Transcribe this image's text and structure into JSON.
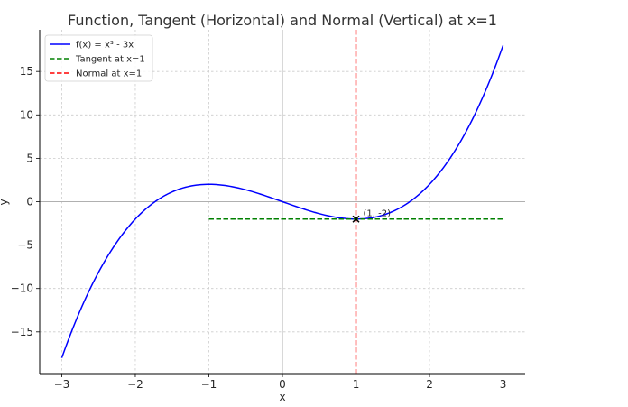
{
  "chart_data": {
    "type": "line",
    "title": "Function, Tangent (Horizontal) and Normal (Vertical) at x=1",
    "xlabel": "x",
    "ylabel": "y",
    "xlim": [
      -3.3,
      3.3
    ],
    "ylim": [
      -19.8,
      19.8
    ],
    "xticks": [
      -3,
      -2,
      -1,
      0,
      1,
      2,
      3
    ],
    "yticks": [
      -15,
      -10,
      -5,
      0,
      5,
      10,
      15
    ],
    "xtick_labels": [
      "−3",
      "−2",
      "−1",
      "0",
      "1",
      "2",
      "3"
    ],
    "ytick_labels": [
      "−15",
      "−10",
      "−5",
      "0",
      "5",
      "10",
      "15"
    ],
    "grid": true,
    "legend_position": "top-left",
    "series": [
      {
        "name": "f(x) = x³ - 3x",
        "kind": "curve",
        "expression": "x^3 - 3x",
        "x_range": [
          -3,
          3
        ],
        "samples": 200,
        "color": "#0000ff",
        "dash": "solid"
      },
      {
        "name": "Tangent at x=1",
        "kind": "horizontal",
        "y": -2,
        "x_range": [
          -1,
          3
        ],
        "color": "#008000",
        "dash": "dashed"
      },
      {
        "name": "Normal at x=1",
        "kind": "vertical",
        "x": 1,
        "color": "#ff0000",
        "dash": "dashed"
      }
    ],
    "reference_lines": [
      {
        "orientation": "horizontal",
        "value": 0,
        "color": "#b0b0b0"
      },
      {
        "orientation": "vertical",
        "value": 0,
        "color": "#b0b0b0"
      }
    ],
    "point": {
      "x": 1,
      "y": -2,
      "marker": "x",
      "color": "#000000"
    },
    "annotation": {
      "text": "(1, -2)",
      "x": 1,
      "y": -2
    }
  }
}
